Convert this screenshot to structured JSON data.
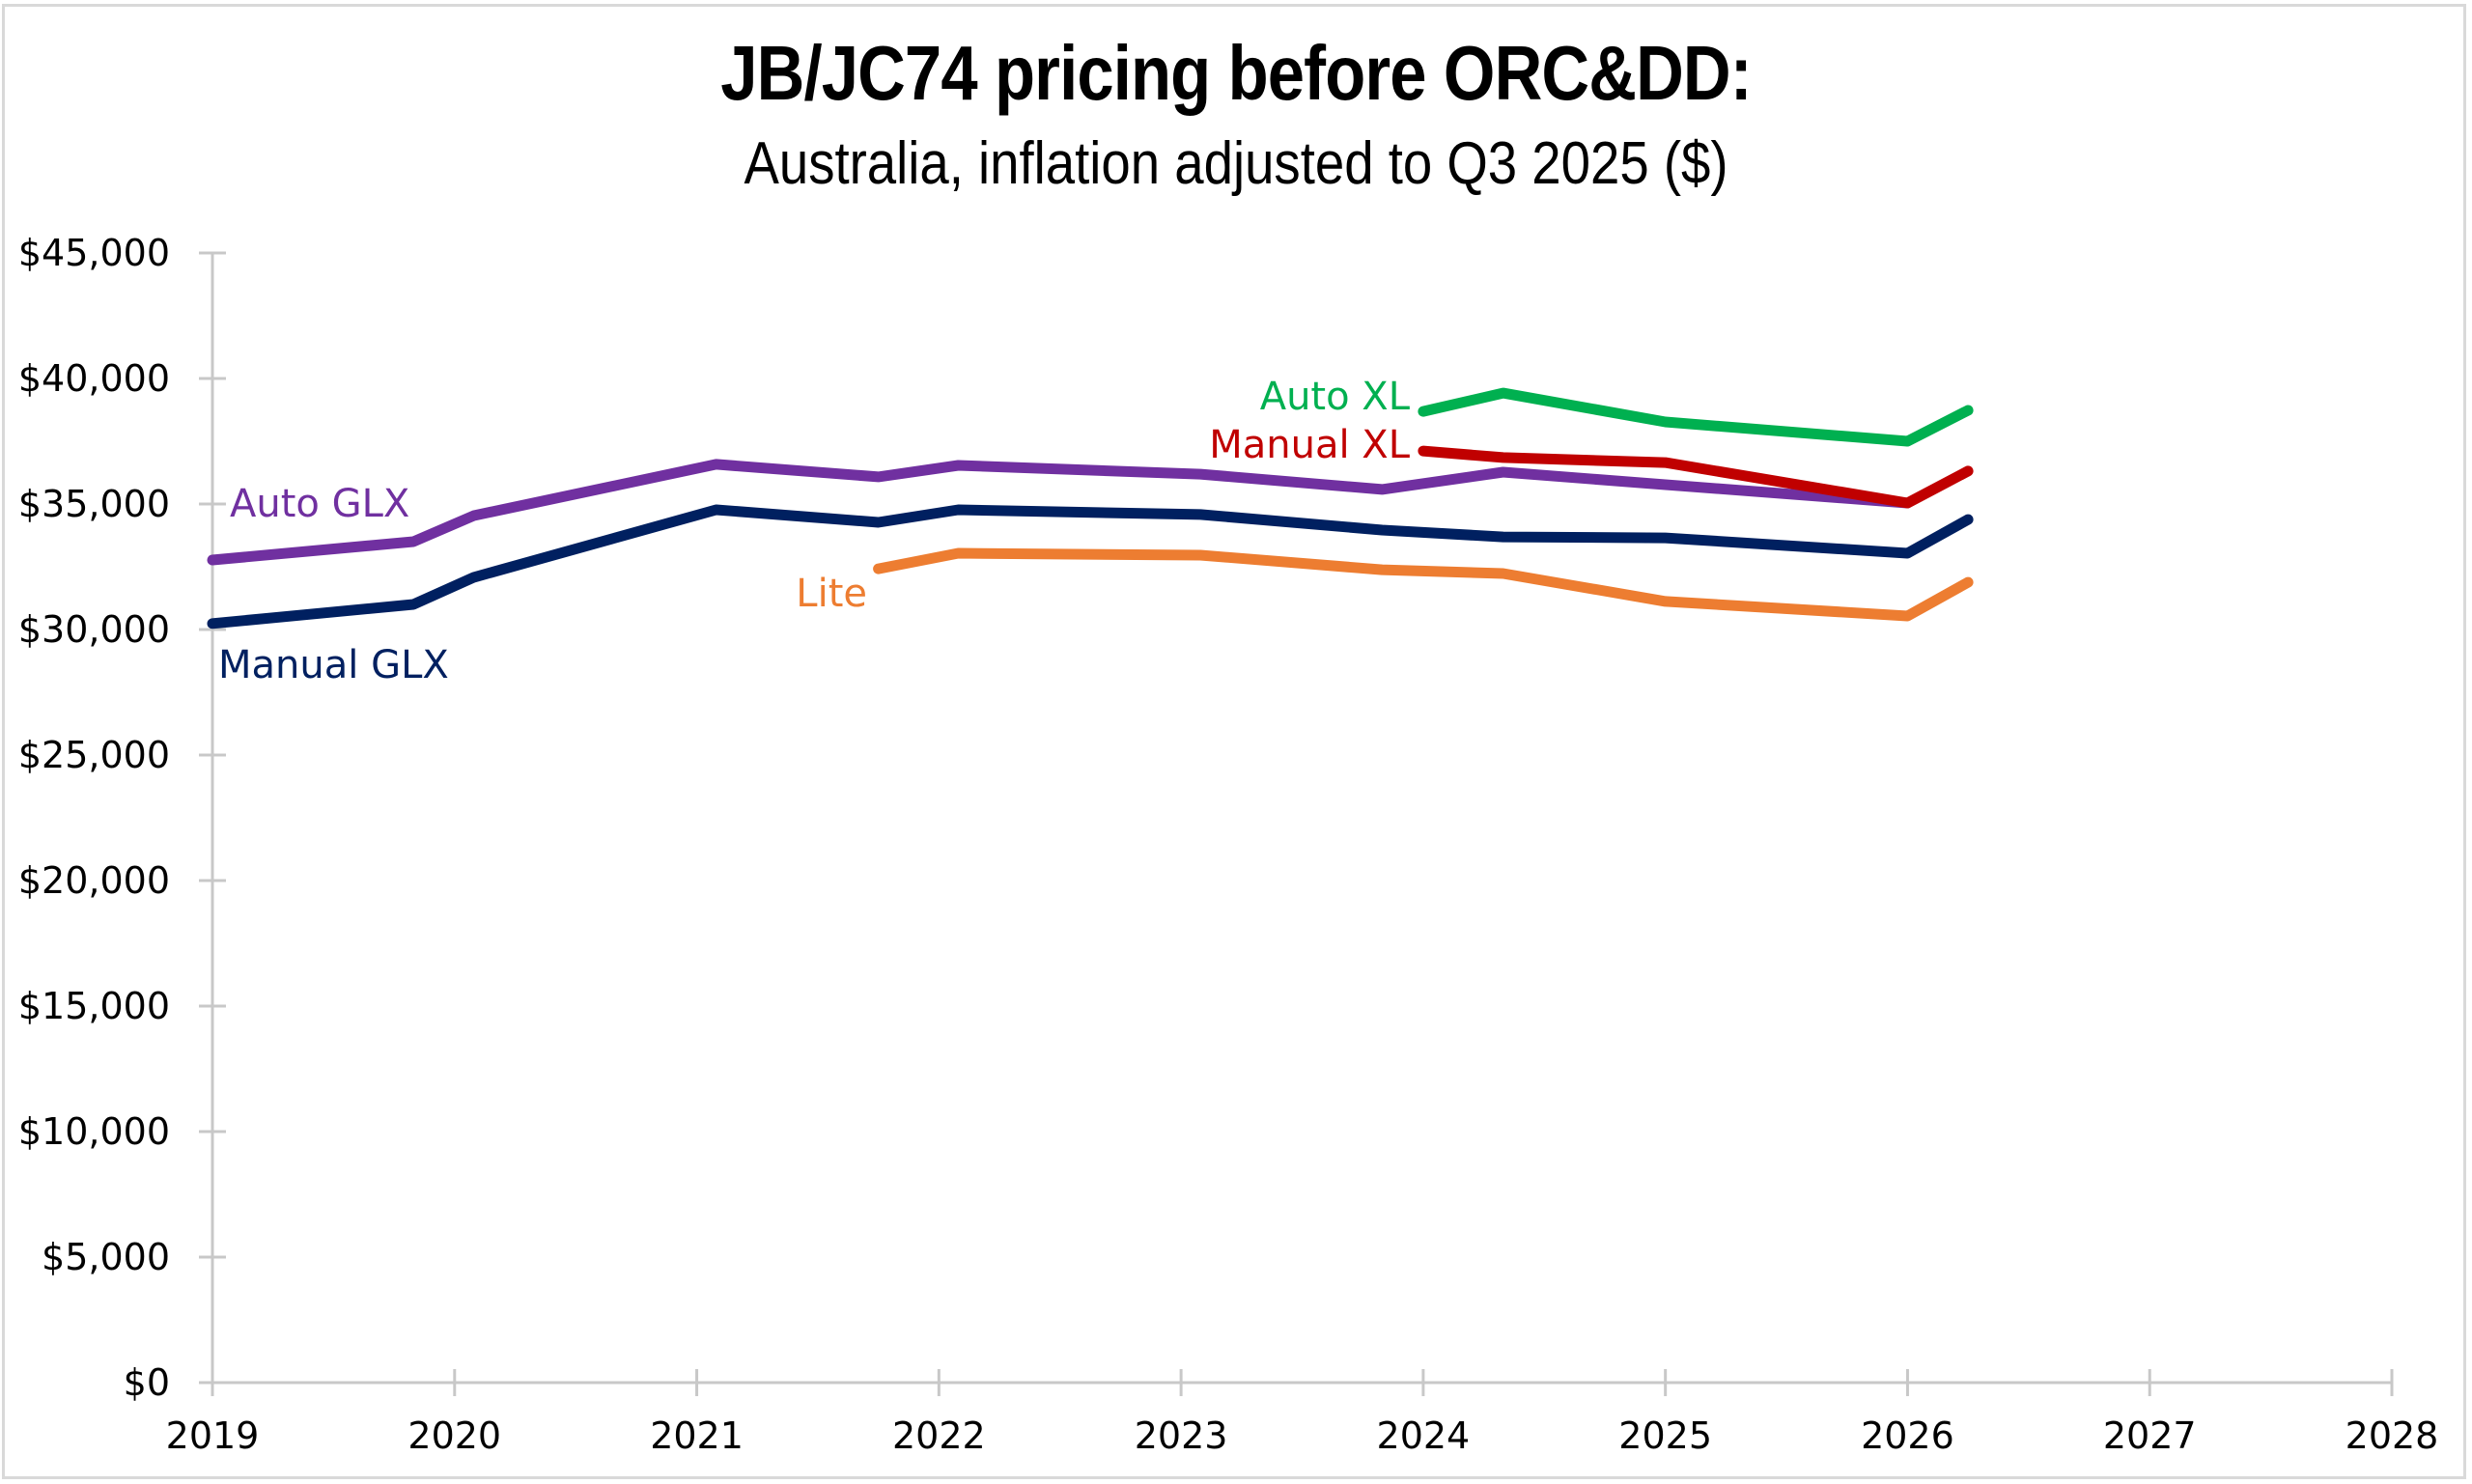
{
  "chart_data": {
    "type": "line",
    "title": "JB/JC74 pricing before ORC&DD:",
    "subtitle": "Australia, inflation adjusted to Q3 2025 ($)",
    "xlabel": "",
    "ylabel": "",
    "xlim": [
      2019,
      2028
    ],
    "ylim": [
      0,
      45000
    ],
    "x_ticks": [
      2019,
      2020,
      2021,
      2022,
      2023,
      2024,
      2025,
      2026,
      2027,
      2028
    ],
    "x_tick_labels": [
      "2019",
      "2020",
      "2021",
      "2022",
      "2023",
      "2024",
      "2025",
      "2026",
      "2027",
      "2028"
    ],
    "y_ticks": [
      0,
      5000,
      10000,
      15000,
      20000,
      25000,
      30000,
      35000,
      40000,
      45000
    ],
    "y_tick_labels": [
      "$0",
      "$5,000",
      "$10,000",
      "$15,000",
      "$20,000",
      "$25,000",
      "$30,000",
      "$35,000",
      "$40,000",
      "$45,000"
    ],
    "grid": false,
    "legend": "inline labels",
    "series": [
      {
        "name": "Auto GLX",
        "color": "#7030a0",
        "x": [
          2019.0,
          2019.83,
          2020.08,
          2021.08,
          2021.75,
          2022.08,
          2023.08,
          2023.83,
          2024.33,
          2025.0,
          2026.0
        ],
        "values": [
          32770,
          33500,
          34540,
          36580,
          36080,
          36540,
          36190,
          35580,
          36270,
          35770,
          35040
        ]
      },
      {
        "name": "Manual GLX",
        "color": "#002060",
        "x": [
          2019.0,
          2019.83,
          2020.08,
          2021.08,
          2021.75,
          2022.08,
          2023.08,
          2023.83,
          2024.33,
          2025.0,
          2026.0,
          2026.25
        ],
        "values": [
          30240,
          31000,
          32080,
          34770,
          34270,
          34770,
          34580,
          33960,
          33690,
          33650,
          33040,
          34380
        ]
      },
      {
        "name": "Lite",
        "color": "#ed7d31",
        "x": [
          2021.75,
          2022.08,
          2023.08,
          2023.83,
          2024.33,
          2025.0,
          2026.0,
          2026.25
        ],
        "values": [
          32420,
          33040,
          32960,
          32380,
          32230,
          31120,
          30540,
          31880
        ]
      },
      {
        "name": "Auto XL",
        "color": "#00b050",
        "x": [
          2024.0,
          2024.33,
          2025.0,
          2026.0,
          2026.25
        ],
        "values": [
          38690,
          39420,
          38270,
          37500,
          38730
        ]
      },
      {
        "name": "Manual XL",
        "color": "#c00000",
        "x": [
          2024.0,
          2024.33,
          2025.0,
          2026.0,
          2026.25
        ],
        "values": [
          37110,
          36850,
          36650,
          35040,
          36310
        ]
      }
    ],
    "annotations": [
      {
        "text": "Auto GLX",
        "series": "Auto GLX"
      },
      {
        "text": "Manual GLX",
        "series": "Manual GLX"
      },
      {
        "text": "Lite",
        "series": "Lite"
      },
      {
        "text": "Auto XL",
        "series": "Auto XL"
      },
      {
        "text": "Manual XL",
        "series": "Manual XL"
      }
    ]
  },
  "colors": {
    "axis": "#c8c8c8",
    "frame": "#d9d9d9",
    "text": "#000000"
  }
}
